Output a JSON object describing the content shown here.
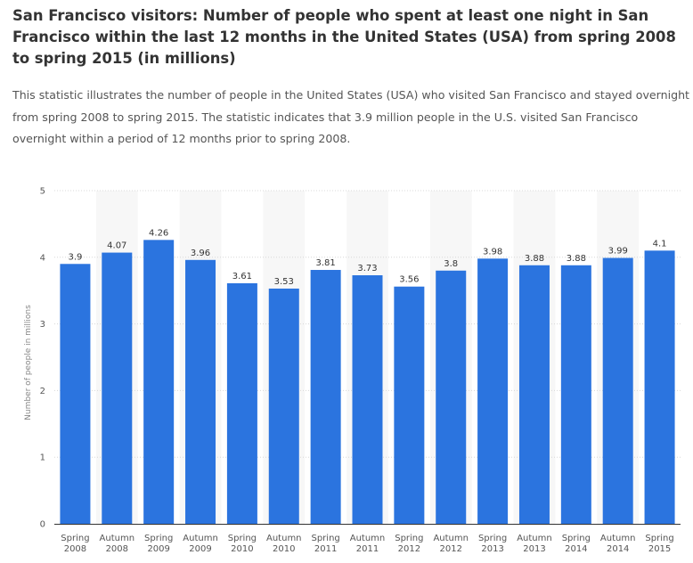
{
  "page": {
    "title": "San Francisco visitors: Number of people who spent at least one night in San Francisco within the last 12 months in the United States (USA) from spring 2008 to spring 2015 (in millions)",
    "description": "This statistic illustrates the number of people in the United States (USA) who visited San Francisco and stayed overnight from spring 2008 to spring 2015. The statistic indicates that 3.9 million people in the U.S. visited San Francisco overnight within a period of 12 months prior to spring 2008."
  },
  "colors": {
    "bar": "#2b74df",
    "band": "#f7f7f7",
    "grid": "#d8d8d8",
    "axis": "#333333"
  },
  "chart_data": {
    "type": "bar",
    "title": "",
    "xlabel": "",
    "ylabel": "Number of people in millions",
    "ylim": [
      0,
      5
    ],
    "yticks": [
      0,
      1,
      2,
      3,
      4,
      5
    ],
    "grid": true,
    "categories": [
      [
        "Spring",
        "2008"
      ],
      [
        "Autumn",
        "2008"
      ],
      [
        "Spring",
        "2009"
      ],
      [
        "Autumn",
        "2009"
      ],
      [
        "Spring",
        "2010"
      ],
      [
        "Autumn",
        "2010"
      ],
      [
        "Spring",
        "2011"
      ],
      [
        "Autumn",
        "2011"
      ],
      [
        "Spring",
        "2012"
      ],
      [
        "Autumn",
        "2012"
      ],
      [
        "Spring",
        "2013"
      ],
      [
        "Autumn",
        "2013"
      ],
      [
        "Spring",
        "2014"
      ],
      [
        "Autumn",
        "2014"
      ],
      [
        "Spring",
        "2015"
      ]
    ],
    "values": [
      3.9,
      4.07,
      4.26,
      3.96,
      3.61,
      3.53,
      3.81,
      3.73,
      3.56,
      3.8,
      3.98,
      3.88,
      3.88,
      3.99,
      4.1
    ],
    "value_labels": [
      "3.9",
      "4.07",
      "4.26",
      "3.96",
      "3.61",
      "3.53",
      "3.81",
      "3.73",
      "3.56",
      "3.8",
      "3.98",
      "3.88",
      "3.88",
      "3.99",
      "4.1"
    ]
  }
}
